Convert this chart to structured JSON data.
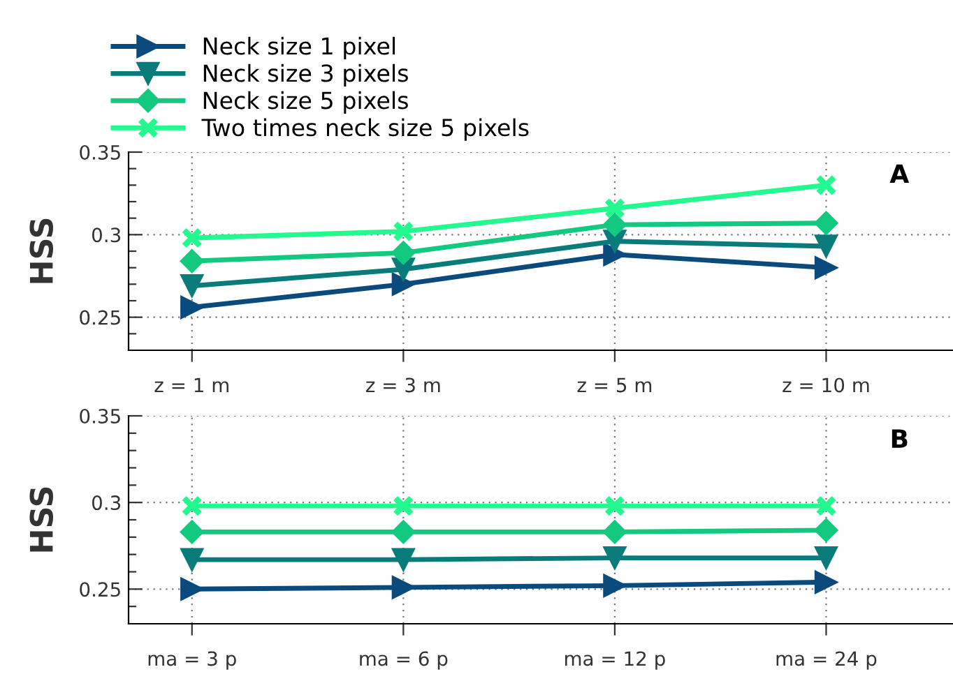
{
  "chart_data": [
    {
      "type": "line",
      "ylabel": "HSS",
      "categories": [
        "z = 1 m",
        "z = 3 m",
        "z = 5 m",
        "z = 10 m"
      ],
      "ylim": [
        0.23,
        0.35
      ],
      "yticks": [
        {
          "value": 0.24,
          "label": null
        },
        0.25,
        {
          "value": 0.26,
          "label": null
        },
        {
          "value": 0.27,
          "label": null
        },
        {
          "value": 0.28,
          "label": null
        },
        {
          "value": 0.29,
          "label": null
        },
        0.3,
        {
          "value": 0.31,
          "label": null
        },
        {
          "value": 0.32,
          "label": null
        },
        {
          "value": 0.33,
          "label": null
        },
        {
          "value": 0.34,
          "label": null
        },
        0.35
      ],
      "grid": true,
      "legend": "top left",
      "annotations": [
        "A"
      ],
      "series": [
        {
          "name": "Neck size 1 pixel",
          "color": "#0b4a7d",
          "marker": "triangle_right",
          "values": [
            0.256,
            0.27,
            0.288,
            0.28
          ]
        },
        {
          "name": "Neck size 3 pixels",
          "color": "#0a7b7b",
          "marker": "triangle_down",
          "values": [
            0.269,
            0.279,
            0.296,
            0.293
          ]
        },
        {
          "name": "Neck size 5 pixels",
          "color": "#12c97f",
          "marker": "diamond",
          "values": [
            0.284,
            0.289,
            0.306,
            0.307
          ]
        },
        {
          "name": "Two times neck size 5 pixels",
          "color": "#22f98f",
          "marker": "cross",
          "values": [
            0.298,
            0.302,
            0.316,
            0.33
          ]
        }
      ]
    },
    {
      "type": "line",
      "ylabel": "HSS",
      "categories": [
        "ma = 3 p",
        "ma = 6 p",
        "ma = 12 p",
        "ma = 24 p"
      ],
      "ylim": [
        0.23,
        0.35
      ],
      "yticks": [
        {
          "value": 0.24,
          "label": null
        },
        0.25,
        {
          "value": 0.26,
          "label": null
        },
        {
          "value": 0.27,
          "label": null
        },
        {
          "value": 0.28,
          "label": null
        },
        {
          "value": 0.29,
          "label": null
        },
        0.3,
        {
          "value": 0.31,
          "label": null
        },
        {
          "value": 0.32,
          "label": null
        },
        {
          "value": 0.33,
          "label": null
        },
        {
          "value": 0.34,
          "label": null
        },
        0.35
      ],
      "grid": true,
      "annotations": [
        "B"
      ],
      "series": [
        {
          "color": "#0b4a7d",
          "marker": "triangle_right",
          "values": [
            0.25,
            0.251,
            0.252,
            0.254
          ]
        },
        {
          "color": "#0a7b7b",
          "marker": "triangle_down",
          "values": [
            0.267,
            0.267,
            0.268,
            0.268
          ]
        },
        {
          "color": "#12c97f",
          "marker": "diamond",
          "values": [
            0.283,
            0.283,
            0.283,
            0.284
          ]
        },
        {
          "color": "#22f98f",
          "marker": "cross",
          "values": [
            0.298,
            0.298,
            0.298,
            0.298
          ]
        }
      ]
    }
  ]
}
